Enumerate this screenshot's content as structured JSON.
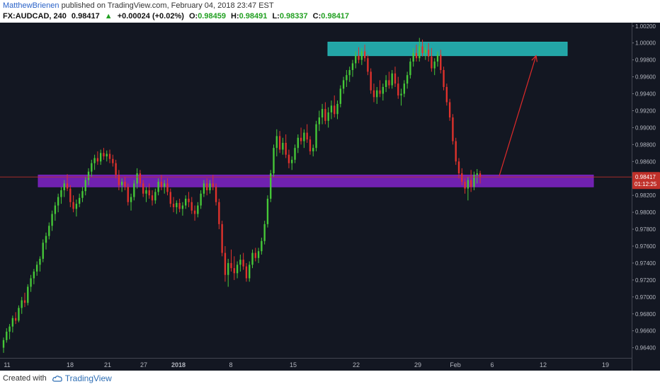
{
  "header": {
    "author": "MatthewBrienen",
    "published_text": "published on TradingView.com, February 04, 2018 23:47 EST"
  },
  "symbol_bar": {
    "symbol": "FX:AUDCAD, 240",
    "last": "0.98417",
    "change_arrow": "▲",
    "change": "+0.00024 (+0.02%)",
    "open_label": "O:",
    "open": "0.98459",
    "high_label": "H:",
    "high": "0.98491",
    "low_label": "L:",
    "low": "0.98337",
    "close_label": "C:",
    "close": "0.98417"
  },
  "footer": {
    "created_with": "Created with",
    "brand": "TradingView"
  },
  "colors": {
    "background": "#131722",
    "up_candle": "#46c838",
    "down_candle": "#e0322c",
    "resistance_zone": "#26b5b5",
    "support_zone": "#7b22c0",
    "price_line": "#c0312a",
    "arrow": "#e02a2a",
    "axis_text": "#b2b5be",
    "price_badge": "#c0312a"
  },
  "chart_data": {
    "type": "candlestick",
    "symbol": "FX:AUDCAD",
    "timeframe": "240",
    "ylim": [
      0.9628,
      1.0024
    ],
    "y_ticks": [
      "1.00200",
      "1.00000",
      "0.99800",
      "0.99600",
      "0.99400",
      "0.99200",
      "0.99000",
      "0.98800",
      "0.98600",
      "0.98200",
      "0.98000",
      "0.97800",
      "0.97600",
      "0.97400",
      "0.97200",
      "0.97000",
      "0.96800",
      "0.96600",
      "0.96400"
    ],
    "x_ticks": [
      "11",
      "18",
      "21",
      "27",
      "2018",
      "8",
      "15",
      "22",
      "29",
      "Feb",
      "6",
      "12",
      "19"
    ],
    "last_price": "0.98417",
    "countdown": "01:12:25",
    "zones": [
      {
        "name": "resistance",
        "low": 0.9985,
        "high": 1.0001
      },
      {
        "name": "support",
        "low": 0.983,
        "high": 0.9844
      }
    ],
    "projection": {
      "from": 0.9843,
      "to": 0.9985
    },
    "candles": [
      [
        0.964,
        0.9652,
        0.9634,
        0.9649
      ],
      [
        0.9649,
        0.9663,
        0.9646,
        0.9659
      ],
      [
        0.9659,
        0.9668,
        0.965,
        0.9665
      ],
      [
        0.9665,
        0.9678,
        0.9658,
        0.9675
      ],
      [
        0.9675,
        0.9682,
        0.9668,
        0.9672
      ],
      [
        0.9672,
        0.969,
        0.967,
        0.9687
      ],
      [
        0.9687,
        0.97,
        0.968,
        0.9696
      ],
      [
        0.9696,
        0.9705,
        0.9688,
        0.9693
      ],
      [
        0.9693,
        0.9715,
        0.969,
        0.9712
      ],
      [
        0.9712,
        0.9726,
        0.9706,
        0.9722
      ],
      [
        0.9722,
        0.9733,
        0.9715,
        0.973
      ],
      [
        0.973,
        0.9742,
        0.9725,
        0.9738
      ],
      [
        0.9738,
        0.9748,
        0.973,
        0.9745
      ],
      [
        0.9745,
        0.9768,
        0.9741,
        0.9764
      ],
      [
        0.9764,
        0.9776,
        0.9756,
        0.9772
      ],
      [
        0.9772,
        0.9788,
        0.9768,
        0.9784
      ],
      [
        0.9784,
        0.9802,
        0.9778,
        0.9798
      ],
      [
        0.9798,
        0.9812,
        0.979,
        0.9808
      ],
      [
        0.9808,
        0.9822,
        0.98,
        0.9818
      ],
      [
        0.9818,
        0.983,
        0.981,
        0.9826
      ],
      [
        0.9826,
        0.9838,
        0.9818,
        0.9834
      ],
      [
        0.9834,
        0.9845,
        0.9825,
        0.9828
      ],
      [
        0.9828,
        0.9832,
        0.9806,
        0.9812
      ],
      [
        0.9812,
        0.982,
        0.98,
        0.9804
      ],
      [
        0.9804,
        0.9815,
        0.9795,
        0.981
      ],
      [
        0.981,
        0.9822,
        0.9806,
        0.9817
      ],
      [
        0.9817,
        0.983,
        0.9812,
        0.9825
      ],
      [
        0.9825,
        0.9842,
        0.982,
        0.9838
      ],
      [
        0.9838,
        0.9852,
        0.9832,
        0.9848
      ],
      [
        0.9848,
        0.9862,
        0.9842,
        0.9858
      ],
      [
        0.9858,
        0.9868,
        0.985,
        0.9864
      ],
      [
        0.9864,
        0.9872,
        0.9856,
        0.986
      ],
      [
        0.986,
        0.9874,
        0.9856,
        0.987
      ],
      [
        0.987,
        0.9876,
        0.9862,
        0.9866
      ],
      [
        0.9866,
        0.9873,
        0.986,
        0.9869
      ],
      [
        0.9869,
        0.9874,
        0.9858,
        0.9863
      ],
      [
        0.9863,
        0.9868,
        0.9854,
        0.9858
      ],
      [
        0.9858,
        0.9862,
        0.984,
        0.9844
      ],
      [
        0.9844,
        0.985,
        0.9826,
        0.9832
      ],
      [
        0.9832,
        0.984,
        0.9824,
        0.9836
      ],
      [
        0.9836,
        0.9842,
        0.9826,
        0.983
      ],
      [
        0.983,
        0.9834,
        0.9808,
        0.9812
      ],
      [
        0.9812,
        0.9822,
        0.9802,
        0.9818
      ],
      [
        0.9818,
        0.9838,
        0.9814,
        0.9834
      ],
      [
        0.9834,
        0.9852,
        0.9828,
        0.9846
      ],
      [
        0.9846,
        0.985,
        0.983,
        0.9834
      ],
      [
        0.9834,
        0.9838,
        0.9818,
        0.9822
      ],
      [
        0.9822,
        0.983,
        0.9812,
        0.9826
      ],
      [
        0.9826,
        0.9834,
        0.9816,
        0.982
      ],
      [
        0.982,
        0.9826,
        0.9808,
        0.9814
      ],
      [
        0.9814,
        0.9828,
        0.981,
        0.9824
      ],
      [
        0.9824,
        0.984,
        0.982,
        0.9836
      ],
      [
        0.9836,
        0.9844,
        0.9826,
        0.983
      ],
      [
        0.983,
        0.9838,
        0.9822,
        0.9834
      ],
      [
        0.9834,
        0.984,
        0.982,
        0.9824
      ],
      [
        0.9824,
        0.9828,
        0.9806,
        0.981
      ],
      [
        0.981,
        0.9818,
        0.98,
        0.9806
      ],
      [
        0.9806,
        0.9814,
        0.9798,
        0.9811
      ],
      [
        0.9811,
        0.9816,
        0.98,
        0.9804
      ],
      [
        0.9804,
        0.9812,
        0.9796,
        0.9808
      ],
      [
        0.9808,
        0.982,
        0.9804,
        0.9816
      ],
      [
        0.9816,
        0.9824,
        0.9806,
        0.9812
      ],
      [
        0.9812,
        0.9818,
        0.9798,
        0.9802
      ],
      [
        0.9802,
        0.9808,
        0.979,
        0.9798
      ],
      [
        0.9798,
        0.9812,
        0.9794,
        0.9808
      ],
      [
        0.9808,
        0.9826,
        0.9804,
        0.9822
      ],
      [
        0.9822,
        0.9838,
        0.9818,
        0.9834
      ],
      [
        0.9834,
        0.984,
        0.982,
        0.9826
      ],
      [
        0.9826,
        0.9838,
        0.9822,
        0.9834
      ],
      [
        0.9834,
        0.9844,
        0.9826,
        0.983
      ],
      [
        0.983,
        0.9834,
        0.9808,
        0.9812
      ],
      [
        0.9812,
        0.9816,
        0.978,
        0.9786
      ],
      [
        0.9786,
        0.979,
        0.9748,
        0.9752
      ],
      [
        0.9752,
        0.976,
        0.9718,
        0.9726
      ],
      [
        0.9726,
        0.9745,
        0.9712,
        0.974
      ],
      [
        0.974,
        0.9756,
        0.973,
        0.9734
      ],
      [
        0.9734,
        0.9748,
        0.972,
        0.9728
      ],
      [
        0.9728,
        0.9742,
        0.9722,
        0.9738
      ],
      [
        0.9738,
        0.975,
        0.973,
        0.9744
      ],
      [
        0.9744,
        0.9752,
        0.9732,
        0.9736
      ],
      [
        0.9736,
        0.974,
        0.9718,
        0.9722
      ],
      [
        0.9722,
        0.9742,
        0.9718,
        0.9738
      ],
      [
        0.9738,
        0.9756,
        0.9734,
        0.9752
      ],
      [
        0.9752,
        0.9758,
        0.9742,
        0.9746
      ],
      [
        0.9746,
        0.9758,
        0.974,
        0.9754
      ],
      [
        0.9754,
        0.977,
        0.975,
        0.9766
      ],
      [
        0.9766,
        0.979,
        0.9762,
        0.9786
      ],
      [
        0.9786,
        0.982,
        0.9782,
        0.9816
      ],
      [
        0.9816,
        0.985,
        0.9812,
        0.9846
      ],
      [
        0.9846,
        0.988,
        0.9842,
        0.9876
      ],
      [
        0.9876,
        0.9898,
        0.9866,
        0.989
      ],
      [
        0.989,
        0.9896,
        0.987,
        0.9874
      ],
      [
        0.9874,
        0.9888,
        0.9868,
        0.9882
      ],
      [
        0.9882,
        0.9892,
        0.9864,
        0.9868
      ],
      [
        0.9868,
        0.9874,
        0.9852,
        0.9858
      ],
      [
        0.9858,
        0.9866,
        0.985,
        0.9862
      ],
      [
        0.9862,
        0.988,
        0.9858,
        0.9876
      ],
      [
        0.9876,
        0.9892,
        0.987,
        0.9888
      ],
      [
        0.9888,
        0.99,
        0.988,
        0.9884
      ],
      [
        0.9884,
        0.9898,
        0.9876,
        0.9894
      ],
      [
        0.9894,
        0.9904,
        0.9882,
        0.9886
      ],
      [
        0.9886,
        0.989,
        0.9868,
        0.9872
      ],
      [
        0.9872,
        0.988,
        0.9866,
        0.9876
      ],
      [
        0.9876,
        0.9908,
        0.9872,
        0.9904
      ],
      [
        0.9904,
        0.992,
        0.9896,
        0.9912
      ],
      [
        0.9912,
        0.9928,
        0.9904,
        0.9922
      ],
      [
        0.9922,
        0.993,
        0.9904,
        0.9908
      ],
      [
        0.9908,
        0.9924,
        0.99,
        0.9918
      ],
      [
        0.9918,
        0.9932,
        0.991,
        0.9926
      ],
      [
        0.9926,
        0.9938,
        0.9912,
        0.9916
      ],
      [
        0.9916,
        0.9932,
        0.991,
        0.9928
      ],
      [
        0.9928,
        0.995,
        0.9924,
        0.9946
      ],
      [
        0.9946,
        0.996,
        0.994,
        0.9956
      ],
      [
        0.9956,
        0.9968,
        0.9948,
        0.9962
      ],
      [
        0.9962,
        0.9972,
        0.9954,
        0.9968
      ],
      [
        0.9968,
        0.998,
        0.996,
        0.9976
      ],
      [
        0.9976,
        0.999,
        0.997,
        0.9985
      ],
      [
        0.9985,
        0.9995,
        0.9976,
        0.998
      ],
      [
        0.998,
        0.9994,
        0.9974,
        0.999
      ],
      [
        0.999,
        0.9998,
        0.9978,
        0.9982
      ],
      [
        0.9982,
        0.9986,
        0.9962,
        0.9966
      ],
      [
        0.9966,
        0.997,
        0.994,
        0.9944
      ],
      [
        0.9944,
        0.9952,
        0.993,
        0.9936
      ],
      [
        0.9936,
        0.9948,
        0.9928,
        0.9944
      ],
      [
        0.9944,
        0.9956,
        0.9936,
        0.994
      ],
      [
        0.994,
        0.9952,
        0.9932,
        0.9948
      ],
      [
        0.9948,
        0.9962,
        0.9942,
        0.9956
      ],
      [
        0.9956,
        0.9966,
        0.9946,
        0.995
      ],
      [
        0.995,
        0.9968,
        0.9946,
        0.9964
      ],
      [
        0.9964,
        0.9972,
        0.9948,
        0.9952
      ],
      [
        0.9952,
        0.996,
        0.9934,
        0.9938
      ],
      [
        0.9938,
        0.9946,
        0.9926,
        0.994
      ],
      [
        0.994,
        0.9956,
        0.9936,
        0.9952
      ],
      [
        0.9952,
        0.9966,
        0.9946,
        0.9962
      ],
      [
        0.9962,
        0.9982,
        0.9958,
        0.9978
      ],
      [
        0.9978,
        0.9994,
        0.9972,
        0.9988
      ],
      [
        0.9988,
        0.9998,
        0.9978,
        0.9982
      ],
      [
        0.9982,
        1.0006,
        0.9978,
        0.9996
      ],
      [
        0.9996,
        1.0004,
        0.9984,
        0.9988
      ],
      [
        0.9988,
        0.9998,
        0.998,
        0.9992
      ],
      [
        0.9992,
        1.0,
        0.9978,
        0.9984
      ],
      [
        0.9984,
        0.9994,
        0.9966,
        0.997
      ],
      [
        0.997,
        0.9982,
        0.9962,
        0.9978
      ],
      [
        0.9978,
        0.999,
        0.9972,
        0.9986
      ],
      [
        0.9986,
        0.9992,
        0.9964,
        0.9968
      ],
      [
        0.9968,
        0.9972,
        0.9944,
        0.9948
      ],
      [
        0.9948,
        0.9952,
        0.9926,
        0.993
      ],
      [
        0.993,
        0.9934,
        0.9908,
        0.9912
      ],
      [
        0.9912,
        0.9916,
        0.988,
        0.9884
      ],
      [
        0.9884,
        0.9888,
        0.9856,
        0.986
      ],
      [
        0.986,
        0.9864,
        0.984,
        0.9846
      ],
      [
        0.9846,
        0.9852,
        0.9832,
        0.9836
      ],
      [
        0.9836,
        0.984,
        0.9822,
        0.9828
      ],
      [
        0.9828,
        0.9842,
        0.9814,
        0.9838
      ],
      [
        0.9838,
        0.985,
        0.9824,
        0.983
      ],
      [
        0.983,
        0.9848,
        0.9826,
        0.9844
      ],
      [
        0.9844,
        0.9851,
        0.9834,
        0.9846
      ],
      [
        0.9846,
        0.9849,
        0.9834,
        0.9842
      ]
    ]
  }
}
